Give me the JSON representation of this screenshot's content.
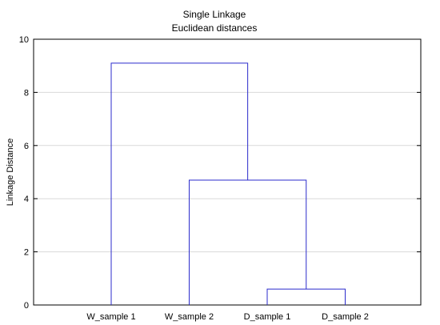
{
  "chart_data": {
    "type": "dendrogram",
    "title": "Single Linkage",
    "subtitle": "Euclidean distances",
    "xlabel": "",
    "ylabel": "Linkage Distance",
    "ylim": [
      0,
      10
    ],
    "yticks": [
      0,
      2,
      4,
      6,
      8,
      10
    ],
    "leaves": [
      "W_sample 1",
      "W_sample 2",
      "D_sample 1",
      "D_sample 2"
    ],
    "merges": [
      {
        "left": "D_sample 1",
        "right": "D_sample 2",
        "height": 0.6
      },
      {
        "left": "W_sample 2",
        "right": "D_sample 1 + D_sample 2",
        "height": 4.7
      },
      {
        "left": "W_sample 1",
        "right": "W_sample 2 + D_sample 1 + D_sample 2",
        "height": 9.1
      }
    ],
    "grid": true,
    "line_color": "#2b2bcc",
    "grid_color": "#d9d9d9"
  }
}
